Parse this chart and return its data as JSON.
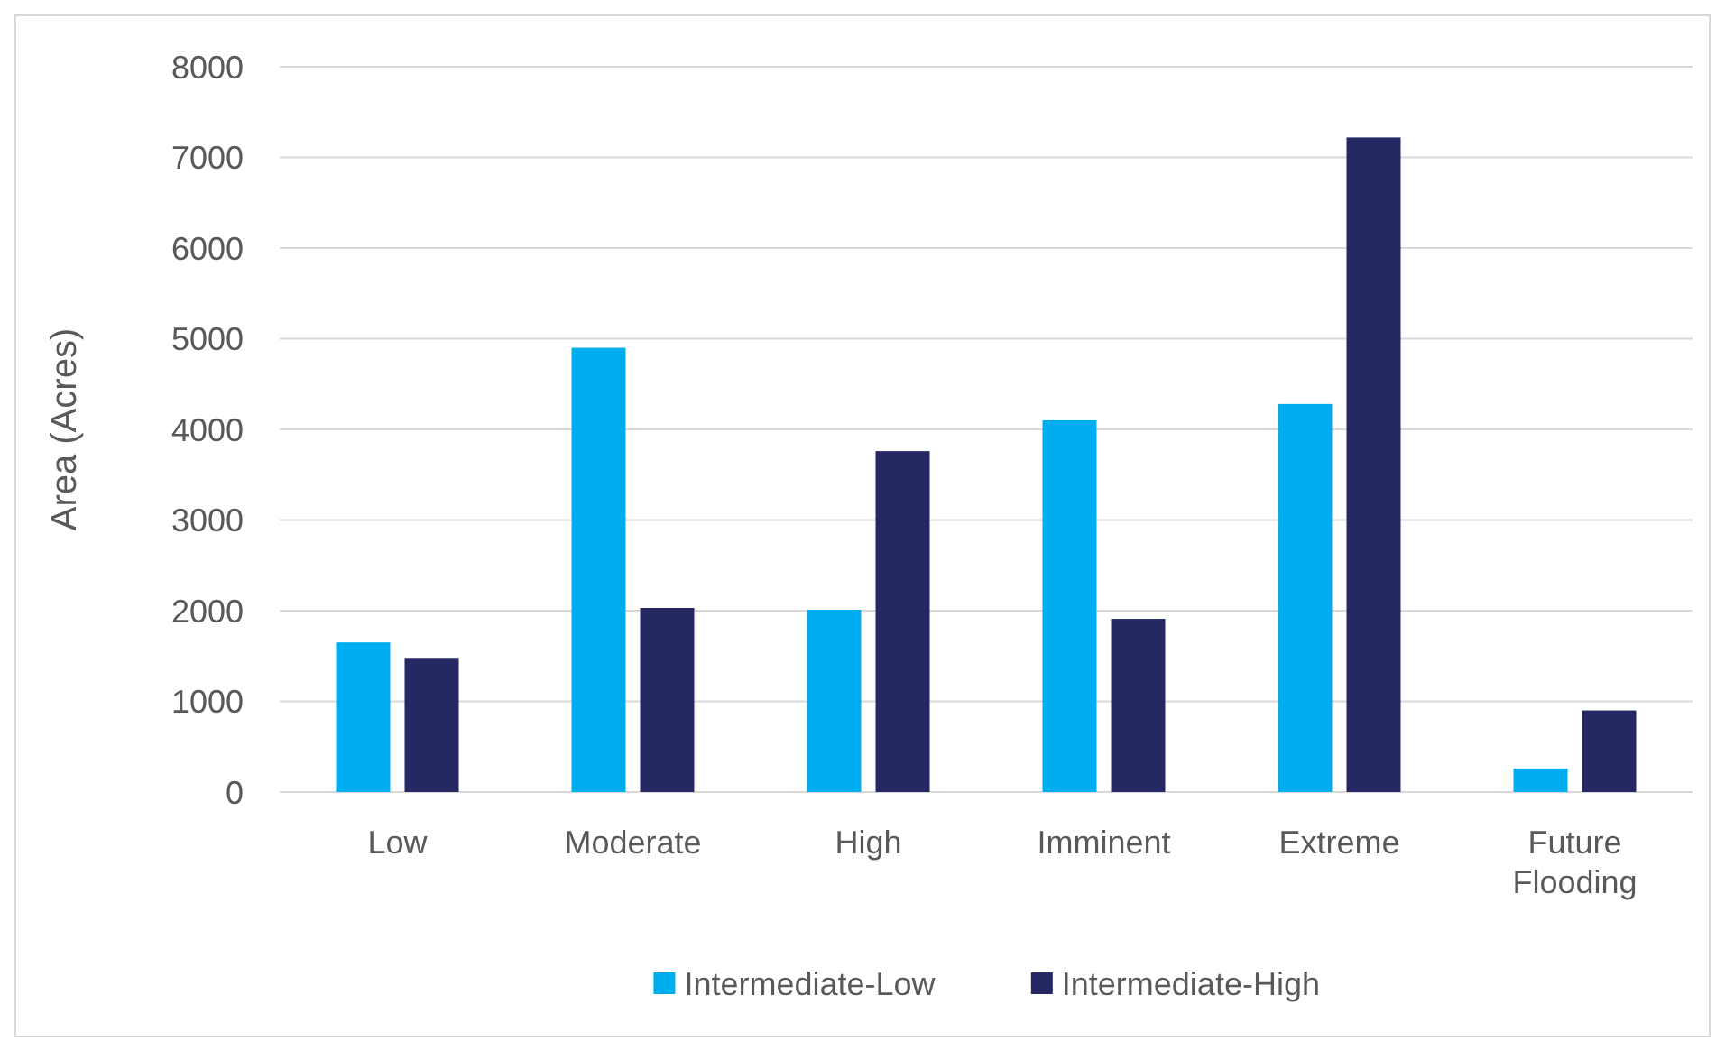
{
  "chart_data": {
    "type": "bar",
    "ylabel": "Area (Acres)",
    "categories": [
      "Low",
      "Moderate",
      "High",
      "Imminent",
      "Extreme",
      "Future Flooding"
    ],
    "series": [
      {
        "name": "Intermediate-Low",
        "color": "#00aef0",
        "values": [
          1650,
          4900,
          2010,
          4100,
          4280,
          260
        ]
      },
      {
        "name": "Intermediate-High",
        "color": "#262864",
        "values": [
          1480,
          2030,
          3760,
          1910,
          7220,
          900
        ]
      }
    ],
    "ylim": [
      0,
      8000
    ],
    "yticks": [
      0,
      1000,
      2000,
      3000,
      4000,
      5000,
      6000,
      7000,
      8000
    ],
    "grid": "y",
    "legend": "bottom"
  }
}
